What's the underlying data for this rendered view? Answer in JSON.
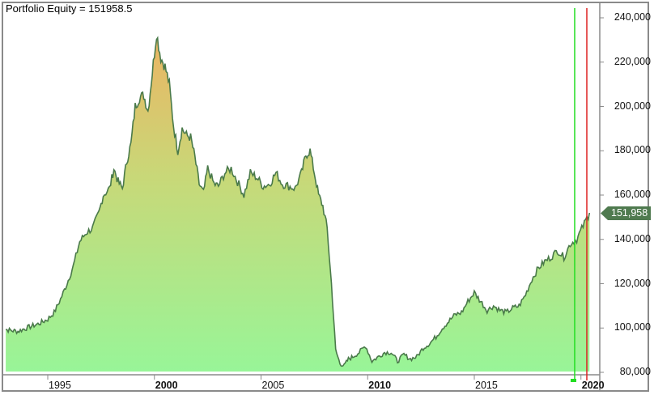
{
  "header": {
    "title": "Portfolio Equity = 151958.5"
  },
  "price_axis": {
    "labels": [
      "240,000",
      "220,000",
      "200,000",
      "180,000",
      "160,000",
      "140,000",
      "120,000",
      "100,000",
      "80,000"
    ],
    "last_value_label": "151,958",
    "last_value_bg": "#4f7a4f"
  },
  "time_axis": {
    "labels": [
      "1995",
      "2000",
      "2005",
      "2010",
      "2015",
      "2020"
    ],
    "bold_labels": [
      "2000",
      "2010",
      "2020"
    ]
  },
  "markers": {
    "green_line_color": "#22dd22",
    "red_line_color": "#dd2222"
  },
  "colors": {
    "line": "#4a7a4a",
    "fill_top": "#f0b060",
    "fill_bottom": "#98f598",
    "border": "#8a8a8a"
  },
  "chart_data": {
    "type": "area",
    "title": "Portfolio Equity = 151958.5",
    "xlabel": "",
    "ylabel": "",
    "ylim": [
      80000,
      240000
    ],
    "xlim": [
      1992.8,
      2020.6
    ],
    "grid": false,
    "legend": "none",
    "y_ticks": [
      80000,
      100000,
      120000,
      140000,
      160000,
      180000,
      200000,
      220000,
      240000
    ],
    "x_ticks": [
      1995,
      2000,
      2005,
      2010,
      2015,
      2020
    ],
    "last_value": 151958.5,
    "vertical_markers": [
      {
        "color": "green",
        "x": 2019.05
      },
      {
        "color": "red",
        "x": 2019.65
      }
    ],
    "series": [
      {
        "name": "Portfolio Equity",
        "x": [
          1992.8,
          1993.2,
          1993.6,
          1994.0,
          1994.3,
          1994.6,
          1995.0,
          1995.3,
          1995.6,
          1995.9,
          1996.2,
          1996.5,
          1996.8,
          1997.1,
          1997.4,
          1997.6,
          1997.9,
          1998.1,
          1998.3,
          1998.5,
          1998.7,
          1998.9,
          1999.1,
          1999.3,
          1999.5,
          1999.7,
          1999.9,
          2000.1,
          2000.3,
          2000.5,
          2000.7,
          2000.9,
          2001.1,
          2001.3,
          2001.5,
          2001.7,
          2001.9,
          2002.1,
          2002.3,
          2002.5,
          2002.8,
          2003.0,
          2003.3,
          2003.6,
          2003.9,
          2004.2,
          2004.5,
          2004.8,
          2005.1,
          2005.4,
          2005.7,
          2006.0,
          2006.3,
          2006.6,
          2006.9,
          2007.1,
          2007.3,
          2007.5,
          2007.7,
          2007.9,
          2008.1,
          2008.3,
          2008.5,
          2008.7,
          2008.9,
          2009.1,
          2009.3,
          2009.6,
          2009.9,
          2010.2,
          2010.5,
          2010.8,
          2011.1,
          2011.4,
          2011.7,
          2012.0,
          2012.3,
          2012.6,
          2012.9,
          2013.2,
          2013.5,
          2013.8,
          2014.1,
          2014.4,
          2014.7,
          2015.0,
          2015.3,
          2015.6,
          2015.9,
          2016.2,
          2016.5,
          2016.8,
          2017.1,
          2017.4,
          2017.7,
          2018.0,
          2018.3,
          2018.6,
          2018.9,
          2019.2,
          2019.5,
          2019.8,
          2020.1,
          2020.4
        ],
        "values": [
          100000,
          99000,
          98500,
          100000,
          101000,
          102000,
          104000,
          107000,
          113000,
          120000,
          128000,
          139000,
          143000,
          145000,
          152000,
          160000,
          163000,
          172000,
          166000,
          163000,
          175000,
          183000,
          200000,
          204000,
          205000,
          198000,
          215000,
          233000,
          222000,
          218000,
          210000,
          191000,
          180000,
          190000,
          187000,
          186000,
          177000,
          165000,
          161000,
          172000,
          165000,
          164000,
          170000,
          172000,
          166000,
          160000,
          170000,
          168000,
          164000,
          165000,
          170000,
          165000,
          164000,
          163000,
          170000,
          178000,
          180000,
          170000,
          160000,
          155000,
          145000,
          120000,
          90000,
          84000,
          83000,
          86000,
          87000,
          89000,
          92000,
          85000,
          87000,
          89000,
          89000,
          85000,
          88000,
          86000,
          87000,
          91000,
          93000,
          96000,
          100000,
          103000,
          106000,
          107000,
          112000,
          116000,
          112000,
          108000,
          110000,
          108000,
          107000,
          109000,
          110000,
          115000,
          122000,
          127000,
          130000,
          132000,
          135000,
          132000,
          138000,
          140000,
          146000,
          151958
        ]
      }
    ]
  }
}
